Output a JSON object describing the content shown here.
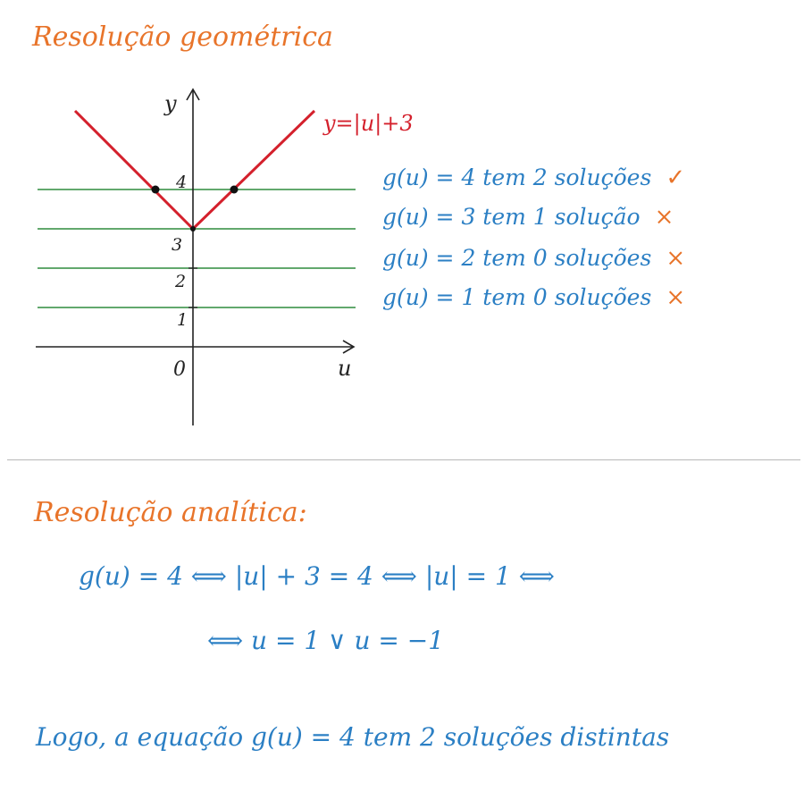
{
  "geometric": {
    "title": "Resolução geométrica",
    "graph": {
      "y_axis_label": "y",
      "x_axis_label": "u",
      "origin_label": "0",
      "tick_labels": [
        "4",
        "3",
        "2",
        "1"
      ],
      "function_label": "y=|u|+3",
      "colors": {
        "function": "#d4202c",
        "lines": "#2e8b3d",
        "axes": "#222222"
      }
    },
    "solutions": [
      {
        "text": "g(u) = 4  tem 2 soluções",
        "mark": "✓"
      },
      {
        "text": "g(u) = 3  tem 1 solução",
        "mark": "×"
      },
      {
        "text": "g(u) = 2  tem 0 soluções",
        "mark": "×"
      },
      {
        "text": "g(u) = 1  tem 0 soluções",
        "mark": "×"
      }
    ]
  },
  "analytic": {
    "title": "Resolução analítica:",
    "line1": "g(u) = 4  ⟺  |u| + 3 = 4  ⟺  |u| = 1  ⟺",
    "line2": "⟺  u = 1  ∨  u = −1"
  },
  "conclusion": "Logo, a equação  g(u) = 4  tem 2 soluções distintas",
  "colors": {
    "heading": "#e8742a",
    "text": "#2b7fc4"
  }
}
